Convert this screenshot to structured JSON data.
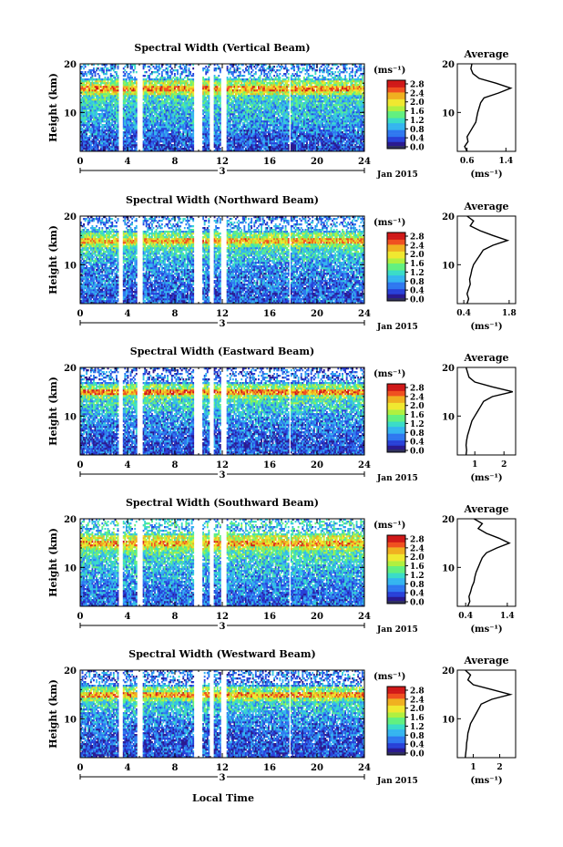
{
  "figure": {
    "month_label": "Jan 2015",
    "xlabel": "Local Time",
    "unit_label": "(ms⁻¹)",
    "avg_title": "Average",
    "colors": {
      "missing": "#ffffff",
      "bottom": "#303060",
      "scale": [
        "#2a1a90",
        "#2840d8",
        "#2f78f0",
        "#35b5f0",
        "#3adcc8",
        "#62f080",
        "#b0f040",
        "#f0e830",
        "#f0b020",
        "#f05020",
        "#d01818"
      ]
    }
  },
  "chart_data": [
    {
      "type": "heatmap",
      "title": "Spectral Width (Vertical Beam)",
      "ylabel": "Height (km)",
      "xlim": [
        0,
        24
      ],
      "ylim": [
        2,
        20
      ],
      "xticks": [
        0,
        4,
        8,
        12,
        16,
        20,
        24
      ],
      "yticks": [
        10,
        20
      ],
      "day_marker": "3",
      "colorbar": {
        "range": [
          0,
          3.0
        ],
        "ticks": [
          "0.0",
          "0.4",
          "0.8",
          "1.2",
          "1.6",
          "2.0",
          "2.4",
          "2.8"
        ]
      },
      "gaps_hours": [
        [
          3.3,
          3.6
        ],
        [
          4.8,
          5.3
        ],
        [
          9.6,
          10.3
        ],
        [
          10.9,
          11.3
        ],
        [
          11.9,
          12.3
        ],
        [
          17.6,
          17.8
        ]
      ],
      "average_profile": {
        "xticks": [
          0.6,
          1.4
        ],
        "xlim": [
          0.4,
          1.6
        ],
        "ylim": [
          2,
          20
        ],
        "height_km": [
          2,
          3,
          4,
          5,
          6,
          7,
          8,
          9,
          10,
          11,
          12,
          13,
          14,
          15,
          16,
          17,
          18,
          19,
          20
        ],
        "width_ms": [
          0.6,
          0.55,
          0.62,
          0.6,
          0.66,
          0.72,
          0.78,
          0.8,
          0.82,
          0.85,
          0.88,
          0.95,
          1.25,
          1.5,
          1.2,
          0.85,
          0.72,
          0.68,
          0.7
        ]
      }
    },
    {
      "type": "heatmap",
      "title": "Spectral Width (Northward Beam)",
      "ylabel": "Height (km)",
      "xlim": [
        0,
        24
      ],
      "ylim": [
        2,
        20
      ],
      "xticks": [
        0,
        4,
        8,
        12,
        16,
        20,
        24
      ],
      "yticks": [
        10,
        20
      ],
      "day_marker": "3",
      "colorbar": {
        "range": [
          0,
          3.0
        ],
        "ticks": [
          "0.0",
          "0.4",
          "0.8",
          "1.2",
          "1.6",
          "2.0",
          "2.4",
          "2.8"
        ]
      },
      "gaps_hours": [
        [
          3.3,
          3.6
        ],
        [
          4.8,
          5.3
        ],
        [
          9.6,
          10.3
        ],
        [
          10.9,
          11.3
        ],
        [
          11.9,
          12.3
        ],
        [
          17.6,
          17.8
        ]
      ],
      "average_profile": {
        "xticks": [
          0.4,
          1.8
        ],
        "xlim": [
          0.2,
          2.0
        ],
        "ylim": [
          2,
          20
        ],
        "height_km": [
          2,
          3,
          4,
          5,
          6,
          7,
          8,
          9,
          10,
          11,
          12,
          13,
          14,
          15,
          16,
          17,
          18,
          19,
          20
        ],
        "width_ms": [
          0.5,
          0.55,
          0.5,
          0.55,
          0.6,
          0.58,
          0.62,
          0.65,
          0.7,
          0.8,
          0.9,
          1.0,
          1.3,
          1.75,
          1.3,
          0.9,
          0.6,
          0.7,
          0.5
        ]
      }
    },
    {
      "type": "heatmap",
      "title": "Spectral Width (Eastward Beam)",
      "ylabel": "Height (km)",
      "xlim": [
        0,
        24
      ],
      "ylim": [
        2,
        20
      ],
      "xticks": [
        0,
        4,
        8,
        12,
        16,
        20,
        24
      ],
      "yticks": [
        10,
        20
      ],
      "day_marker": "3",
      "colorbar": {
        "range": [
          0,
          3.0
        ],
        "ticks": [
          "0.0",
          "0.4",
          "0.8",
          "1.2",
          "1.6",
          "2.0",
          "2.4",
          "2.8"
        ]
      },
      "gaps_hours": [
        [
          3.3,
          3.6
        ],
        [
          4.8,
          5.3
        ],
        [
          9.6,
          10.3
        ],
        [
          10.9,
          11.3
        ],
        [
          11.9,
          12.3
        ],
        [
          17.6,
          17.8
        ]
      ],
      "average_profile": {
        "xticks": [
          1,
          2
        ],
        "xlim": [
          0.4,
          2.4
        ],
        "ylim": [
          2,
          20
        ],
        "height_km": [
          2,
          3,
          4,
          5,
          6,
          7,
          8,
          9,
          10,
          11,
          12,
          13,
          14,
          15,
          16,
          17,
          18,
          19,
          20
        ],
        "width_ms": [
          0.7,
          0.72,
          0.7,
          0.72,
          0.75,
          0.8,
          0.85,
          0.9,
          1.0,
          1.1,
          1.2,
          1.3,
          1.6,
          2.3,
          1.6,
          1.0,
          0.8,
          0.75,
          0.7
        ]
      }
    },
    {
      "type": "heatmap",
      "title": "Spectral Width (Southward Beam)",
      "ylabel": "Height (km)",
      "xlim": [
        0,
        24
      ],
      "ylim": [
        2,
        20
      ],
      "xticks": [
        0,
        4,
        8,
        12,
        16,
        20,
        24
      ],
      "yticks": [
        10,
        20
      ],
      "day_marker": "3",
      "colorbar": {
        "range": [
          0,
          3.0
        ],
        "ticks": [
          "0.0",
          "0.4",
          "0.8",
          "1.2",
          "1.6",
          "2.0",
          "2.4",
          "2.8"
        ]
      },
      "gaps_hours": [
        [
          3.3,
          3.6
        ],
        [
          4.8,
          5.3
        ],
        [
          9.6,
          10.3
        ],
        [
          10.9,
          11.3
        ],
        [
          11.9,
          12.3
        ],
        [
          17.6,
          17.8
        ]
      ],
      "average_profile": {
        "xticks": [
          0.4,
          1.4
        ],
        "xlim": [
          0.2,
          1.6
        ],
        "ylim": [
          2,
          20
        ],
        "height_km": [
          2,
          3,
          4,
          5,
          6,
          7,
          8,
          9,
          10,
          11,
          12,
          13,
          14,
          15,
          16,
          17,
          18,
          19,
          20
        ],
        "width_ms": [
          0.45,
          0.5,
          0.48,
          0.52,
          0.55,
          0.6,
          0.62,
          0.65,
          0.7,
          0.75,
          0.8,
          0.9,
          1.15,
          1.45,
          1.2,
          0.9,
          0.7,
          0.8,
          0.6
        ]
      }
    },
    {
      "type": "heatmap",
      "title": "Spectral Width (Westward Beam)",
      "ylabel": "Height (km)",
      "xlim": [
        0,
        24
      ],
      "ylim": [
        2,
        20
      ],
      "xticks": [
        0,
        4,
        8,
        12,
        16,
        20,
        24
      ],
      "yticks": [
        10,
        20
      ],
      "day_marker": "3",
      "colorbar": {
        "range": [
          0,
          3.0
        ],
        "ticks": [
          "0.0",
          "0.4",
          "0.8",
          "1.2",
          "1.6",
          "2.0",
          "2.4",
          "2.8"
        ]
      },
      "gaps_hours": [
        [
          3.3,
          3.6
        ],
        [
          4.8,
          5.3
        ],
        [
          9.6,
          10.3
        ],
        [
          10.9,
          11.3
        ],
        [
          11.9,
          12.3
        ],
        [
          17.6,
          17.8
        ]
      ],
      "average_profile": {
        "xticks": [
          1,
          2
        ],
        "xlim": [
          0.4,
          2.6
        ],
        "ylim": [
          2,
          20
        ],
        "height_km": [
          2,
          3,
          4,
          5,
          6,
          7,
          8,
          9,
          10,
          11,
          12,
          13,
          14,
          15,
          16,
          17,
          18,
          19,
          20
        ],
        "width_ms": [
          0.7,
          0.72,
          0.74,
          0.75,
          0.78,
          0.8,
          0.85,
          0.9,
          1.0,
          1.1,
          1.2,
          1.3,
          1.7,
          2.4,
          1.7,
          1.0,
          0.8,
          0.9,
          0.7
        ]
      }
    }
  ]
}
